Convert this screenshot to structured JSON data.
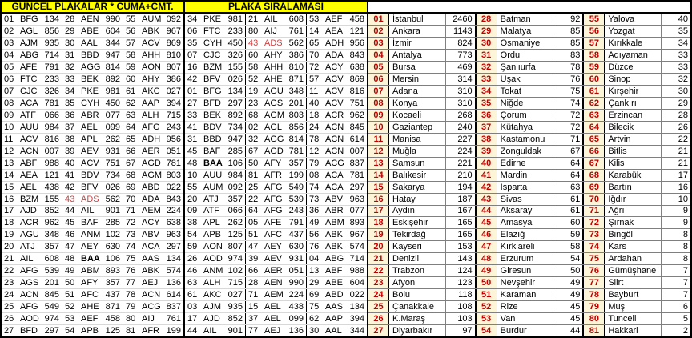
{
  "headers": {
    "guncel_title": "GÜNCEL PLAKALAR * CUMA+CMT.",
    "siralama_title": "PLAKA SIRALAMASI"
  },
  "colors": {
    "header_bg": "#ffff00",
    "code_red": "#c00000",
    "plate_red": "#d04242",
    "code_cell_bg": "#fcf5d8",
    "grid_light": "#d8d8d8",
    "grid_dark": "#7f7f7f",
    "border_black": "#000000"
  },
  "guncel_rows": [
    [
      [
        "01",
        "BFG",
        "134",
        ""
      ],
      [
        "28",
        "AEN",
        "990",
        ""
      ],
      [
        "55",
        "AUM",
        "092",
        ""
      ]
    ],
    [
      [
        "02",
        "AGL",
        "856",
        ""
      ],
      [
        "29",
        "ABE",
        "604",
        ""
      ],
      [
        "56",
        "ABK",
        "967",
        ""
      ]
    ],
    [
      [
        "03",
        "AJM",
        "935",
        ""
      ],
      [
        "30",
        "AAL",
        "344",
        ""
      ],
      [
        "57",
        "ACV",
        "869",
        ""
      ]
    ],
    [
      [
        "04",
        "ABG",
        "714",
        ""
      ],
      [
        "31",
        "BBD",
        "947",
        ""
      ],
      [
        "58",
        "AHH",
        "810",
        ""
      ]
    ],
    [
      [
        "05",
        "AFE",
        "791",
        ""
      ],
      [
        "32",
        "AGG",
        "814",
        ""
      ],
      [
        "59",
        "AON",
        "807",
        ""
      ]
    ],
    [
      [
        "06",
        "FTC",
        "233",
        ""
      ],
      [
        "33",
        "BEK",
        "892",
        ""
      ],
      [
        "60",
        "AHY",
        "386",
        ""
      ]
    ],
    [
      [
        "07",
        "CJC",
        "326",
        ""
      ],
      [
        "34",
        "PKE",
        "981",
        ""
      ],
      [
        "61",
        "AKC",
        "027",
        ""
      ]
    ],
    [
      [
        "08",
        "ACA",
        "781",
        ""
      ],
      [
        "35",
        "CYH",
        "450",
        ""
      ],
      [
        "62",
        "AAP",
        "394",
        ""
      ]
    ],
    [
      [
        "09",
        "ATF",
        "066",
        ""
      ],
      [
        "36",
        "ABR",
        "077",
        ""
      ],
      [
        "63",
        "ALH",
        "715",
        ""
      ]
    ],
    [
      [
        "10",
        "AUU",
        "984",
        ""
      ],
      [
        "37",
        "AEL",
        "099",
        ""
      ],
      [
        "64",
        "AFG",
        "243",
        ""
      ]
    ],
    [
      [
        "11",
        "ACV",
        "816",
        ""
      ],
      [
        "38",
        "APL",
        "262",
        ""
      ],
      [
        "65",
        "ADH",
        "956",
        ""
      ]
    ],
    [
      [
        "12",
        "ACN",
        "007",
        ""
      ],
      [
        "39",
        "AEV",
        "931",
        ""
      ],
      [
        "66",
        "AER",
        "051",
        ""
      ]
    ],
    [
      [
        "13",
        "ABF",
        "988",
        ""
      ],
      [
        "40",
        "ACV",
        "751",
        ""
      ],
      [
        "67",
        "AGD",
        "781",
        ""
      ]
    ],
    [
      [
        "14",
        "AEA",
        "121",
        ""
      ],
      [
        "41",
        "BDV",
        "734",
        ""
      ],
      [
        "68",
        "AGM",
        "803",
        ""
      ]
    ],
    [
      [
        "15",
        "AEL",
        "438",
        ""
      ],
      [
        "42",
        "BFV",
        "026",
        ""
      ],
      [
        "69",
        "ABD",
        "022",
        ""
      ]
    ],
    [
      [
        "16",
        "BZM",
        "155",
        ""
      ],
      [
        "43",
        "ADS",
        "562",
        "red"
      ],
      [
        "70",
        "ADA",
        "843",
        ""
      ]
    ],
    [
      [
        "17",
        "AJD",
        "852",
        ""
      ],
      [
        "44",
        "AIL",
        "901",
        ""
      ],
      [
        "71",
        "AEM",
        "224",
        ""
      ]
    ],
    [
      [
        "18",
        "ACR",
        "962",
        ""
      ],
      [
        "45",
        "BAF",
        "285",
        ""
      ],
      [
        "72",
        "ACY",
        "638",
        ""
      ]
    ],
    [
      [
        "19",
        "AGU",
        "348",
        ""
      ],
      [
        "46",
        "ANM",
        "102",
        ""
      ],
      [
        "73",
        "ABV",
        "963",
        ""
      ]
    ],
    [
      [
        "20",
        "ATJ",
        "357",
        ""
      ],
      [
        "47",
        "AEY",
        "630",
        ""
      ],
      [
        "74",
        "ACA",
        "297",
        ""
      ]
    ],
    [
      [
        "21",
        "AIL",
        "608",
        ""
      ],
      [
        "48",
        "BAA",
        "106",
        "bold"
      ],
      [
        "75",
        "AAS",
        "134",
        ""
      ]
    ],
    [
      [
        "22",
        "AFG",
        "539",
        ""
      ],
      [
        "49",
        "ABM",
        "893",
        ""
      ],
      [
        "76",
        "ABK",
        "574",
        ""
      ]
    ],
    [
      [
        "23",
        "AGS",
        "201",
        ""
      ],
      [
        "50",
        "AFY",
        "357",
        ""
      ],
      [
        "77",
        "AEJ",
        "136",
        ""
      ]
    ],
    [
      [
        "24",
        "ACN",
        "845",
        ""
      ],
      [
        "51",
        "AFC",
        "437",
        ""
      ],
      [
        "78",
        "ACN",
        "614",
        ""
      ]
    ],
    [
      [
        "25",
        "AFG",
        "549",
        ""
      ],
      [
        "52",
        "AHE",
        "871",
        ""
      ],
      [
        "79",
        "ACG",
        "837",
        ""
      ]
    ],
    [
      [
        "26",
        "AOD",
        "974",
        ""
      ],
      [
        "53",
        "AEF",
        "458",
        ""
      ],
      [
        "80",
        "AIJ",
        "761",
        ""
      ]
    ],
    [
      [
        "27",
        "BFD",
        "297",
        ""
      ],
      [
        "54",
        "APB",
        "125",
        ""
      ],
      [
        "81",
        "AFR",
        "199",
        ""
      ]
    ]
  ],
  "siralama_rows": [
    [
      [
        "34",
        "PKE",
        "981",
        ""
      ],
      [
        "21",
        "AIL",
        "608",
        ""
      ],
      [
        "53",
        "AEF",
        "458",
        ""
      ]
    ],
    [
      [
        "06",
        "FTC",
        "233",
        ""
      ],
      [
        "80",
        "AIJ",
        "761",
        ""
      ],
      [
        "14",
        "AEA",
        "121",
        ""
      ]
    ],
    [
      [
        "35",
        "CYH",
        "450",
        ""
      ],
      [
        "43",
        "ADS",
        "562",
        "red"
      ],
      [
        "65",
        "ADH",
        "956",
        ""
      ]
    ],
    [
      [
        "07",
        "CJC",
        "326",
        ""
      ],
      [
        "60",
        "AHY",
        "386",
        ""
      ],
      [
        "70",
        "ADA",
        "843",
        ""
      ]
    ],
    [
      [
        "16",
        "BZM",
        "155",
        ""
      ],
      [
        "58",
        "AHH",
        "810",
        ""
      ],
      [
        "72",
        "ACY",
        "638",
        ""
      ]
    ],
    [
      [
        "42",
        "BFV",
        "026",
        ""
      ],
      [
        "52",
        "AHE",
        "871",
        ""
      ],
      [
        "57",
        "ACV",
        "869",
        ""
      ]
    ],
    [
      [
        "01",
        "BFG",
        "134",
        ""
      ],
      [
        "19",
        "AGU",
        "348",
        ""
      ],
      [
        "11",
        "ACV",
        "816",
        ""
      ]
    ],
    [
      [
        "27",
        "BFD",
        "297",
        ""
      ],
      [
        "23",
        "AGS",
        "201",
        ""
      ],
      [
        "40",
        "ACV",
        "751",
        ""
      ]
    ],
    [
      [
        "33",
        "BEK",
        "892",
        ""
      ],
      [
        "68",
        "AGM",
        "803",
        ""
      ],
      [
        "18",
        "ACR",
        "962",
        ""
      ]
    ],
    [
      [
        "41",
        "BDV",
        "734",
        ""
      ],
      [
        "02",
        "AGL",
        "856",
        ""
      ],
      [
        "24",
        "ACN",
        "845",
        ""
      ]
    ],
    [
      [
        "31",
        "BBD",
        "947",
        ""
      ],
      [
        "32",
        "AGG",
        "814",
        ""
      ],
      [
        "78",
        "ACN",
        "614",
        ""
      ]
    ],
    [
      [
        "45",
        "BAF",
        "285",
        ""
      ],
      [
        "67",
        "AGD",
        "781",
        ""
      ],
      [
        "12",
        "ACN",
        "007",
        ""
      ]
    ],
    [
      [
        "48",
        "BAA",
        "106",
        "bold"
      ],
      [
        "50",
        "AFY",
        "357",
        ""
      ],
      [
        "79",
        "ACG",
        "837",
        ""
      ]
    ],
    [
      [
        "10",
        "AUU",
        "984",
        ""
      ],
      [
        "81",
        "AFR",
        "199",
        ""
      ],
      [
        "08",
        "ACA",
        "781",
        ""
      ]
    ],
    [
      [
        "55",
        "AUM",
        "092",
        ""
      ],
      [
        "25",
        "AFG",
        "549",
        ""
      ],
      [
        "74",
        "ACA",
        "297",
        ""
      ]
    ],
    [
      [
        "20",
        "ATJ",
        "357",
        ""
      ],
      [
        "22",
        "AFG",
        "539",
        ""
      ],
      [
        "73",
        "ABV",
        "963",
        ""
      ]
    ],
    [
      [
        "09",
        "ATF",
        "066",
        ""
      ],
      [
        "64",
        "AFG",
        "243",
        ""
      ],
      [
        "36",
        "ABR",
        "077",
        ""
      ]
    ],
    [
      [
        "38",
        "APL",
        "262",
        ""
      ],
      [
        "05",
        "AFE",
        "791",
        ""
      ],
      [
        "49",
        "ABM",
        "893",
        ""
      ]
    ],
    [
      [
        "54",
        "APB",
        "125",
        ""
      ],
      [
        "51",
        "AFC",
        "437",
        ""
      ],
      [
        "56",
        "ABK",
        "967",
        ""
      ]
    ],
    [
      [
        "59",
        "AON",
        "807",
        ""
      ],
      [
        "47",
        "AEY",
        "630",
        ""
      ],
      [
        "76",
        "ABK",
        "574",
        ""
      ]
    ],
    [
      [
        "26",
        "AOD",
        "974",
        ""
      ],
      [
        "39",
        "AEV",
        "931",
        ""
      ],
      [
        "04",
        "ABG",
        "714",
        ""
      ]
    ],
    [
      [
        "46",
        "ANM",
        "102",
        ""
      ],
      [
        "66",
        "AER",
        "051",
        ""
      ],
      [
        "13",
        "ABF",
        "988",
        ""
      ]
    ],
    [
      [
        "63",
        "ALH",
        "715",
        ""
      ],
      [
        "28",
        "AEN",
        "990",
        ""
      ],
      [
        "29",
        "ABE",
        "604",
        ""
      ]
    ],
    [
      [
        "61",
        "AKC",
        "027",
        ""
      ],
      [
        "71",
        "AEM",
        "224",
        ""
      ],
      [
        "69",
        "ABD",
        "022",
        ""
      ]
    ],
    [
      [
        "03",
        "AJM",
        "935",
        ""
      ],
      [
        "15",
        "AEL",
        "438",
        ""
      ],
      [
        "75",
        "AAS",
        "134",
        ""
      ]
    ],
    [
      [
        "17",
        "AJD",
        "852",
        ""
      ],
      [
        "37",
        "AEL",
        "099",
        ""
      ],
      [
        "62",
        "AAP",
        "394",
        ""
      ]
    ],
    [
      [
        "44",
        "AIL",
        "901",
        ""
      ],
      [
        "77",
        "AEJ",
        "136",
        ""
      ],
      [
        "30",
        "AAL",
        "344",
        ""
      ]
    ]
  ],
  "city_rows": [
    [
      [
        "01",
        "İstanbul",
        "2460"
      ],
      [
        "28",
        "Batman",
        "92"
      ],
      [
        "55",
        "Yalova",
        "40"
      ]
    ],
    [
      [
        "02",
        "Ankara",
        "1143"
      ],
      [
        "29",
        "Malatya",
        "85"
      ],
      [
        "56",
        "Yozgat",
        "35"
      ]
    ],
    [
      [
        "03",
        "İzmir",
        "824"
      ],
      [
        "30",
        "Osmaniye",
        "85"
      ],
      [
        "57",
        "Kırıkkale",
        "34"
      ]
    ],
    [
      [
        "04",
        "Antalya",
        "773"
      ],
      [
        "31",
        "Ordu",
        "83"
      ],
      [
        "58",
        "Adıyaman",
        "33"
      ]
    ],
    [
      [
        "05",
        "Bursa",
        "469"
      ],
      [
        "32",
        "Şanlıurfa",
        "78"
      ],
      [
        "59",
        "Düzce",
        "33"
      ]
    ],
    [
      [
        "06",
        "Mersin",
        "314"
      ],
      [
        "33",
        "Uşak",
        "76"
      ],
      [
        "60",
        "Sinop",
        "32"
      ]
    ],
    [
      [
        "07",
        "Adana",
        "310"
      ],
      [
        "34",
        "Tokat",
        "75"
      ],
      [
        "61",
        "Kırşehir",
        "30"
      ]
    ],
    [
      [
        "08",
        "Konya",
        "310"
      ],
      [
        "35",
        "Niğde",
        "74"
      ],
      [
        "62",
        "Çankırı",
        "29"
      ]
    ],
    [
      [
        "09",
        "Kocaeli",
        "268"
      ],
      [
        "36",
        "Çorum",
        "72"
      ],
      [
        "63",
        "Erzincan",
        "28"
      ]
    ],
    [
      [
        "10",
        "Gaziantep",
        "240"
      ],
      [
        "37",
        "Kütahya",
        "72"
      ],
      [
        "64",
        "Bilecik",
        "26"
      ]
    ],
    [
      [
        "11",
        "Manisa",
        "227"
      ],
      [
        "38",
        "Kastamonu",
        "71"
      ],
      [
        "65",
        "Artvin",
        "22"
      ]
    ],
    [
      [
        "12",
        "Muğla",
        "224"
      ],
      [
        "39",
        "Zonguldak",
        "67"
      ],
      [
        "66",
        "Bitlis",
        "21"
      ]
    ],
    [
      [
        "13",
        "Samsun",
        "221"
      ],
      [
        "40",
        "Edirne",
        "64"
      ],
      [
        "67",
        "Kilis",
        "21"
      ]
    ],
    [
      [
        "14",
        "Balıkesir",
        "210"
      ],
      [
        "41",
        "Mardin",
        "64"
      ],
      [
        "68",
        "Karabük",
        "17"
      ]
    ],
    [
      [
        "15",
        "Sakarya",
        "194"
      ],
      [
        "42",
        "Isparta",
        "63"
      ],
      [
        "69",
        "Bartın",
        "16"
      ]
    ],
    [
      [
        "16",
        "Hatay",
        "187"
      ],
      [
        "43",
        "Sivas",
        "61"
      ],
      [
        "70",
        "Iğdır",
        "10"
      ]
    ],
    [
      [
        "17",
        "Aydın",
        "167"
      ],
      [
        "44",
        "Aksaray",
        "61"
      ],
      [
        "71",
        "Ağrı",
        "9"
      ]
    ],
    [
      [
        "18",
        "Eskişehir",
        "165"
      ],
      [
        "45",
        "Amasya",
        "60"
      ],
      [
        "72",
        "Şırnak",
        "9"
      ]
    ],
    [
      [
        "19",
        "Tekirdağ",
        "165"
      ],
      [
        "46",
        "Elazığ",
        "59"
      ],
      [
        "73",
        "Bingöl",
        "8"
      ]
    ],
    [
      [
        "20",
        "Kayseri",
        "153"
      ],
      [
        "47",
        "Kırklareli",
        "58"
      ],
      [
        "74",
        "Kars",
        "8"
      ]
    ],
    [
      [
        "21",
        "Denizli",
        "143"
      ],
      [
        "48",
        "Erzurum",
        "54"
      ],
      [
        "75",
        "Ardahan",
        "8"
      ]
    ],
    [
      [
        "22",
        "Trabzon",
        "124"
      ],
      [
        "49",
        "Giresun",
        "50"
      ],
      [
        "76",
        "Gümüşhane",
        "7"
      ]
    ],
    [
      [
        "23",
        "Afyon",
        "123"
      ],
      [
        "50",
        "Nevşehir",
        "49"
      ],
      [
        "77",
        "Siirt",
        "7"
      ]
    ],
    [
      [
        "24",
        "Bolu",
        "118"
      ],
      [
        "51",
        "Karaman",
        "49"
      ],
      [
        "78",
        "Bayburt",
        "7"
      ]
    ],
    [
      [
        "25",
        "Çanakkale",
        "108"
      ],
      [
        "52",
        "Rize",
        "45"
      ],
      [
        "79",
        "Muş",
        "6"
      ]
    ],
    [
      [
        "26",
        "K.Maraş",
        "103"
      ],
      [
        "53",
        "Van",
        "45"
      ],
      [
        "80",
        "Tunceli",
        "5"
      ]
    ],
    [
      [
        "27",
        "Diyarbakır",
        "97"
      ],
      [
        "54",
        "Burdur",
        "44"
      ],
      [
        "81",
        "Hakkari",
        "2"
      ]
    ]
  ]
}
